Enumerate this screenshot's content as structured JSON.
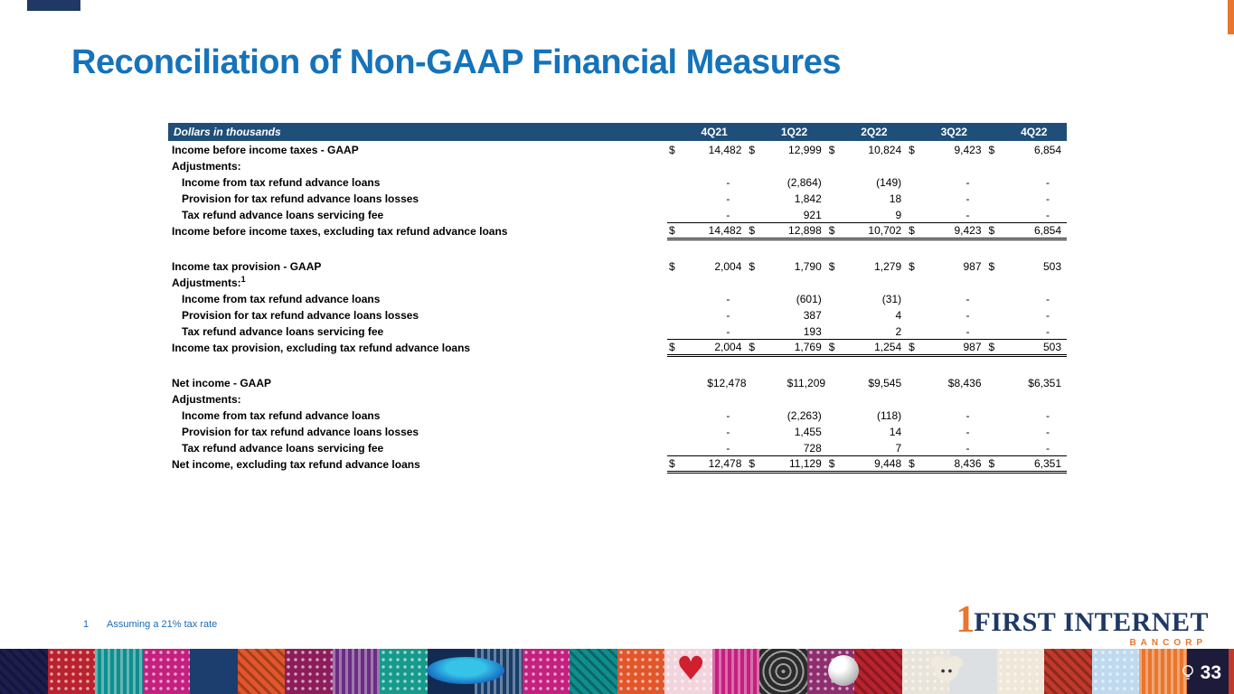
{
  "slide": {
    "title": "Reconciliation of Non-GAAP Financial Measures",
    "page_number": "33",
    "footnote": {
      "marker": "1",
      "text": "Assuming a 21% tax rate"
    }
  },
  "logo": {
    "numeral": "1",
    "first": "FIRST",
    "internet": "INTERNET",
    "bancorp": "BANCORP"
  },
  "colors": {
    "title_blue": "#1573BA",
    "header_bg": "#1F4E79",
    "footnote_blue": "#1B6CB5",
    "logo_navy": "#1F3864",
    "logo_orange": "#E8762D",
    "accent_bottomright": "#C0392B"
  },
  "table": {
    "header": {
      "label": "Dollars in thousands",
      "columns": [
        "4Q21",
        "1Q22",
        "2Q22",
        "3Q22",
        "4Q22"
      ]
    },
    "rows": [
      {
        "label": "Income before income taxes - GAAP",
        "indent": 0,
        "dollar": true,
        "values": [
          "14,482",
          "12,999",
          "10,824",
          "9,423",
          "6,854"
        ]
      },
      {
        "label": "Adjustments:",
        "indent": 0,
        "label_only": true
      },
      {
        "label": "Income from tax refund advance loans",
        "indent": 1,
        "values": [
          "-",
          "(2,864)",
          "(149)",
          "-",
          "-"
        ]
      },
      {
        "label": "Provision for tax refund advance loans losses",
        "indent": 1,
        "values": [
          "-",
          "1,842",
          "18",
          "-",
          "-"
        ]
      },
      {
        "label": "Tax refund advance loans servicing fee",
        "indent": 1,
        "rule": "single",
        "values": [
          "-",
          "921",
          "9",
          "-",
          "-"
        ]
      },
      {
        "label": "Income before income taxes, excluding tax refund advance loans",
        "indent": 0,
        "dollar": true,
        "rule": "double",
        "values": [
          "14,482",
          "12,898",
          "10,702",
          "9,423",
          "6,854"
        ]
      },
      {
        "type": "spacer"
      },
      {
        "label": "Income tax provision - GAAP",
        "indent": 0,
        "dollar": true,
        "values": [
          "2,004",
          "1,790",
          "1,279",
          "987",
          "503"
        ]
      },
      {
        "label": "Adjustments:",
        "sup": "1",
        "indent": 0,
        "label_only": true
      },
      {
        "label": "Income from tax refund advance loans",
        "indent": 1,
        "values": [
          "-",
          "(601)",
          "(31)",
          "-",
          "-"
        ]
      },
      {
        "label": "Provision for tax refund advance loans losses",
        "indent": 1,
        "values": [
          "-",
          "387",
          "4",
          "-",
          "-"
        ]
      },
      {
        "label": "Tax refund advance loans servicing fee",
        "indent": 1,
        "rule": "single",
        "values": [
          "-",
          "193",
          "2",
          "-",
          "-"
        ]
      },
      {
        "label": "Income tax provision, excluding tax refund advance loans",
        "indent": 0,
        "dollar": true,
        "rule": "double",
        "values": [
          "2,004",
          "1,769",
          "1,254",
          "987",
          "503"
        ]
      },
      {
        "type": "spacer"
      },
      {
        "label": "Net income - GAAP",
        "indent": 0,
        "values": [
          "$12,478",
          "$11,209",
          "$9,545",
          "$8,436",
          "$6,351"
        ]
      },
      {
        "label": "Adjustments:",
        "indent": 0,
        "label_only": true
      },
      {
        "label": "Income from tax refund advance loans",
        "indent": 1,
        "values": [
          "-",
          "(2,263)",
          "(118)",
          "-",
          "-"
        ]
      },
      {
        "label": "Provision for tax refund advance loans losses",
        "indent": 1,
        "values": [
          "-",
          "1,455",
          "14",
          "-",
          "-"
        ]
      },
      {
        "label": "Tax refund advance loans servicing fee",
        "indent": 1,
        "rule": "single",
        "values": [
          "-",
          "728",
          "7",
          "-",
          "-"
        ]
      },
      {
        "label": "Net income, excluding tax refund advance loans",
        "indent": 0,
        "dollar": true,
        "rule": "double",
        "values": [
          "12,478",
          "11,129",
          "9,448",
          "8,436",
          "6,351"
        ]
      }
    ]
  },
  "decor": {
    "heart_glyph": "♥",
    "strip_colors": [
      "#1D1D4F",
      "#B9222E",
      "#0F8E8E",
      "#C4207F",
      "#1C3E6E",
      "#E2562B",
      "#8C1C5A",
      "#6A2D82",
      "#159A8C",
      "#122B52",
      "#173E6B",
      "#C4207F",
      "#0F8E8E",
      "#E2562B",
      "#F2D4DC",
      "#C4207F",
      "#2B2B2B",
      "#8E2E6E",
      "#B9222E",
      "#E9E4DA",
      "#DDE0E3",
      "#EFE7D8",
      "#C0392B",
      "#BFD9EE",
      "#E8762D",
      "#1C1C3A"
    ]
  }
}
